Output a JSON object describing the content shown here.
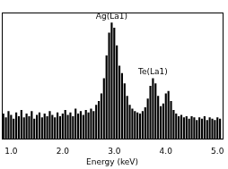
{
  "chart_data": {
    "type": "bar",
    "x_label": "Energy (keV)",
    "x": [
      0.85,
      0.9,
      0.95,
      1.0,
      1.05,
      1.1,
      1.15,
      1.2,
      1.25,
      1.3,
      1.35,
      1.4,
      1.45,
      1.5,
      1.55,
      1.6,
      1.65,
      1.7,
      1.75,
      1.8,
      1.85,
      1.9,
      1.95,
      2.0,
      2.05,
      2.1,
      2.15,
      2.2,
      2.25,
      2.3,
      2.35,
      2.4,
      2.45,
      2.5,
      2.55,
      2.6,
      2.65,
      2.7,
      2.75,
      2.8,
      2.85,
      2.9,
      2.95,
      3.0,
      3.05,
      3.1,
      3.15,
      3.2,
      3.25,
      3.3,
      3.35,
      3.4,
      3.45,
      3.5,
      3.55,
      3.6,
      3.65,
      3.7,
      3.75,
      3.8,
      3.85,
      3.9,
      3.95,
      4.0,
      4.05,
      4.1,
      4.15,
      4.2,
      4.25,
      4.3,
      4.35,
      4.4,
      4.45,
      4.5,
      4.55,
      4.6,
      4.65,
      4.7,
      4.75,
      4.8,
      4.85,
      4.9,
      4.95,
      5.0,
      5.05
    ],
    "values": [
      20,
      17,
      22,
      19,
      16,
      21,
      18,
      23,
      17,
      20,
      18,
      22,
      16,
      19,
      21,
      17,
      20,
      18,
      22,
      19,
      17,
      21,
      18,
      20,
      23,
      19,
      21,
      18,
      24,
      20,
      22,
      19,
      23,
      21,
      24,
      22,
      27,
      30,
      36,
      48,
      66,
      84,
      92,
      88,
      74,
      58,
      52,
      44,
      34,
      27,
      24,
      22,
      21,
      20,
      22,
      25,
      32,
      42,
      48,
      44,
      34,
      26,
      28,
      36,
      38,
      30,
      23,
      20,
      18,
      19,
      17,
      18,
      16,
      18,
      17,
      15,
      17,
      16,
      18,
      15,
      17,
      16,
      15,
      17,
      16
    ],
    "color": "#000000",
    "xlim": [
      0.82,
      5.1
    ],
    "xticks": [
      {
        "value": 1,
        "label": "1.0"
      },
      {
        "value": 2,
        "label": "2.0"
      },
      {
        "value": 3,
        "label": "3.0"
      },
      {
        "value": 4,
        "label": "4.0"
      },
      {
        "value": 5,
        "label": "5.0"
      }
    ],
    "ylim": [
      0,
      100
    ],
    "tick_labels": "x",
    "grid": false,
    "annotations": [
      {
        "text": "Ag(La1)",
        "x": 2.95,
        "y": 92
      },
      {
        "text": "Te(La1)",
        "x": 3.75,
        "y": 48
      }
    ]
  }
}
